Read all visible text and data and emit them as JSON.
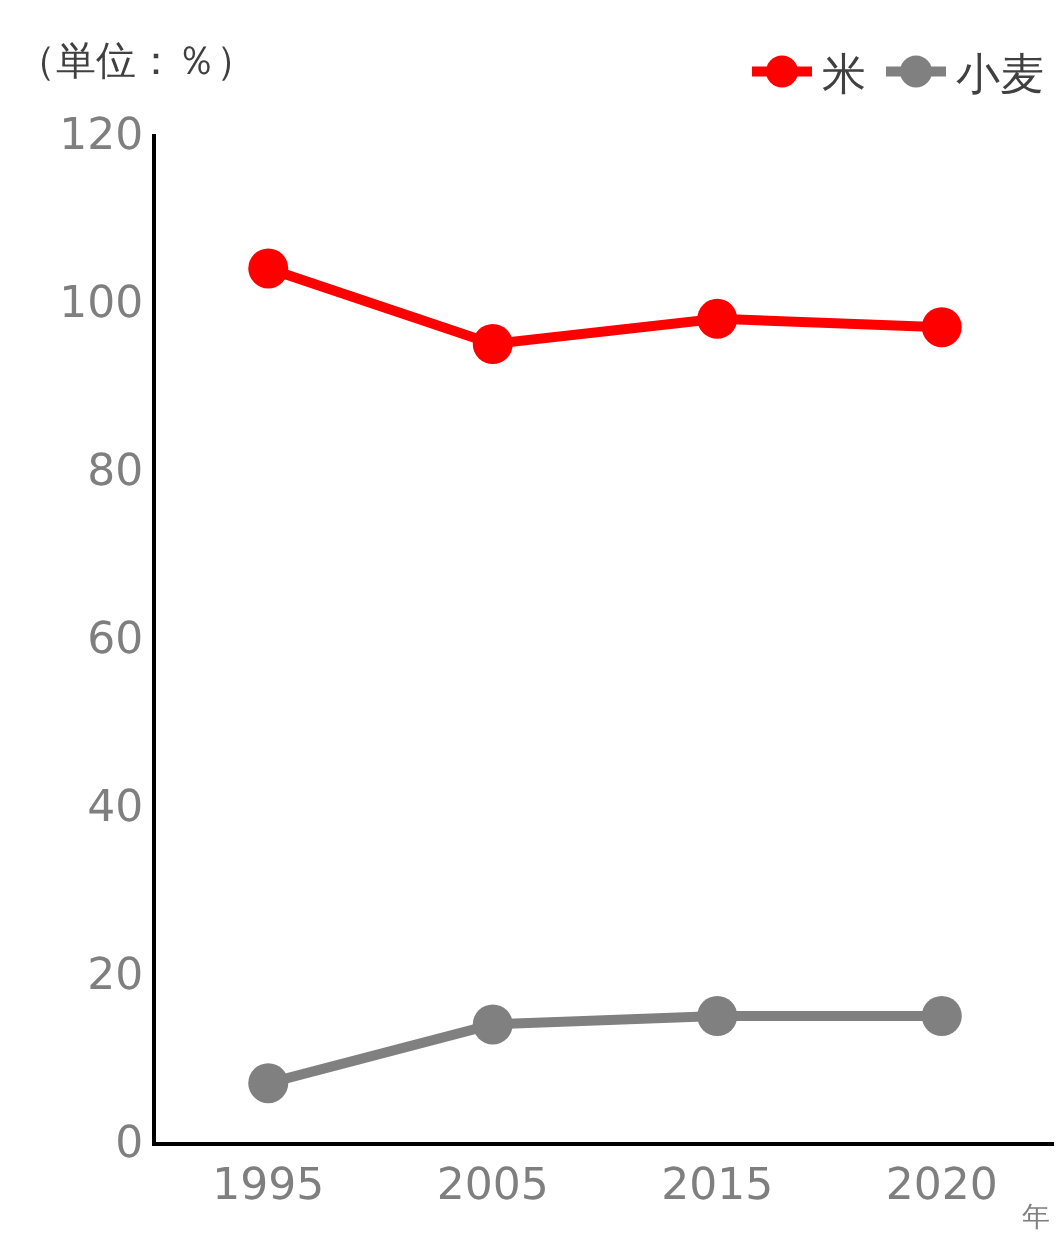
{
  "chart_data": {
    "type": "line",
    "ylabel": "（単位：％）",
    "xlabel": "年",
    "categories": [
      "1995",
      "2005",
      "2015",
      "2020"
    ],
    "series": [
      {
        "name": "米",
        "color": "#ff0000",
        "values": [
          104,
          95,
          98,
          97
        ]
      },
      {
        "name": "小麦",
        "color": "#808080",
        "values": [
          7,
          14,
          15,
          15
        ]
      }
    ],
    "ylim": [
      0,
      120
    ],
    "yticks": [
      0,
      20,
      40,
      60,
      80,
      100,
      120
    ],
    "legend": "top right",
    "marker": "circle",
    "line_style": "solid"
  }
}
